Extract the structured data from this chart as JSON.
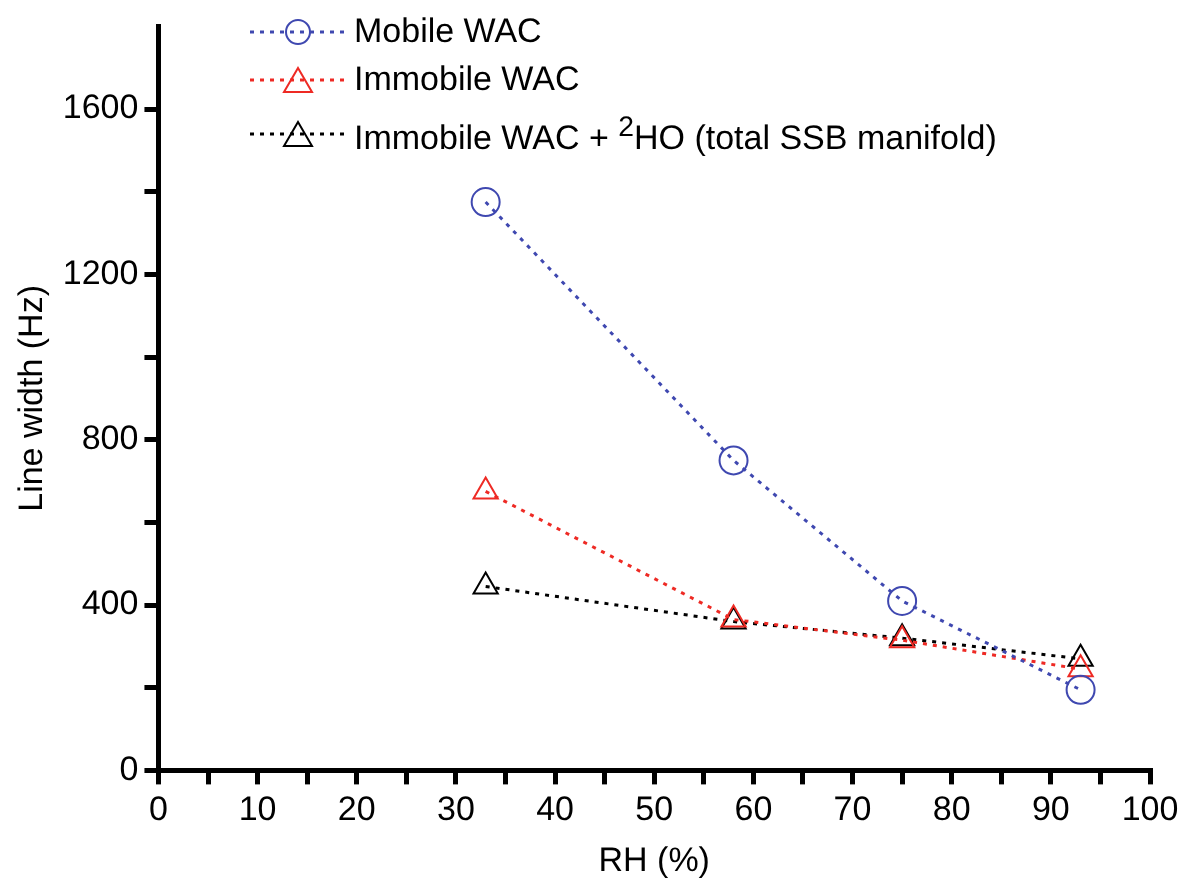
{
  "chart_data": {
    "type": "line",
    "xlabel": "RH (%)",
    "ylabel": "Line width (Hz)",
    "x": [
      33,
      58,
      75,
      93
    ],
    "series": [
      {
        "name": "Mobile WAC",
        "color": "#3f48b0",
        "marker": "circle",
        "values": [
          1375,
          750,
          410,
          195
        ]
      },
      {
        "name": "Immobile WAC",
        "color": "#ee2a24",
        "marker": "triangle",
        "values": [
          675,
          365,
          315,
          245
        ]
      },
      {
        "name": "Immobile WAC + $^{2}$HO (total SSB manifold)",
        "color": "#000000",
        "marker": "triangle",
        "values": [
          445,
          360,
          320,
          270
        ]
      }
    ],
    "xlim": [
      0,
      100
    ],
    "ylim": [
      0,
      1800
    ],
    "xticks": [
      0,
      {
        "value": 5,
        "label": null
      },
      10,
      {
        "value": 15,
        "label": null
      },
      20,
      {
        "value": 25,
        "label": null
      },
      30,
      {
        "value": 35,
        "label": null
      },
      40,
      {
        "value": 45,
        "label": null
      },
      50,
      {
        "value": 55,
        "label": null
      },
      60,
      {
        "value": 65,
        "label": null
      },
      70,
      {
        "value": 75,
        "label": null
      },
      80,
      {
        "value": 85,
        "label": null
      },
      90,
      {
        "value": 95,
        "label": null
      },
      100
    ],
    "yticks": [
      0,
      {
        "value": 200,
        "label": null
      },
      400,
      {
        "value": 600,
        "label": null
      },
      800,
      {
        "value": 1000,
        "label": null
      },
      1200,
      {
        "value": 1400,
        "label": null
      },
      1600
    ],
    "grid": false,
    "legend": "top left",
    "line_style": "dotted"
  }
}
